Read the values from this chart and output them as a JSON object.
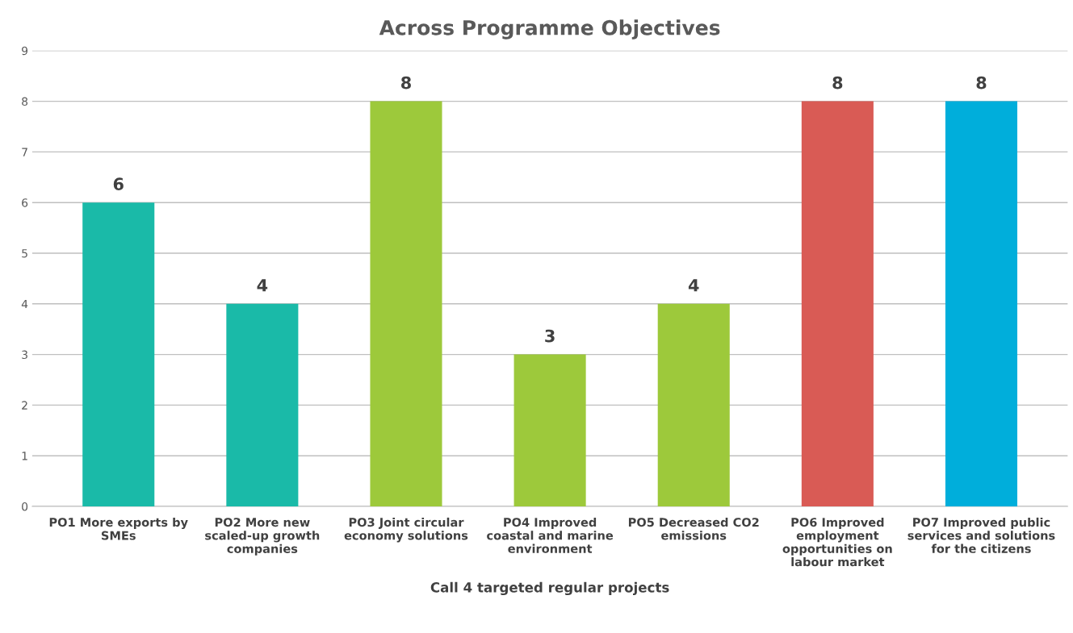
{
  "chart_data": {
    "type": "bar",
    "title": "Across Programme Objectives",
    "xlabel": "Call 4 targeted regular projects",
    "categories": [
      "PO1 More exports by\nSMEs",
      "PO2 More new\nscaled-up growth\ncompanies",
      "PO3 Joint circular\neconomy solutions",
      "PO4 Improved\ncoastal and marine\nenvironment",
      "PO5 Decreased CO2\nemissions",
      "PO6 Improved\nemployment\nopportunities on\nlabour market",
      "PO7 Improved public\nservices and solutions\nfor the citizens"
    ],
    "values": [
      6,
      4,
      8,
      3,
      4,
      8,
      8
    ],
    "colors": [
      "#1abaa8",
      "#1abaa8",
      "#9dc93b",
      "#9dc93b",
      "#9dc93b",
      "#d95b55",
      "#00aedb"
    ],
    "ylim": [
      0,
      9
    ],
    "yticks": [
      0,
      1,
      2,
      3,
      4,
      5,
      6,
      7,
      8,
      9
    ],
    "grid": "y",
    "data_labels": true
  }
}
